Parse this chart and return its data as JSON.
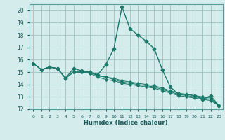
{
  "xlabel": "Humidex (Indice chaleur)",
  "ylabel": "",
  "bg_color": "#d4ecec",
  "grid_color": "#9fbfbf",
  "line_color": "#1a7a6a",
  "xlim": [
    -0.5,
    23.5
  ],
  "ylim": [
    12,
    20.5
  ],
  "yticks": [
    12,
    13,
    14,
    15,
    16,
    17,
    18,
    19,
    20
  ],
  "xticks": [
    0,
    1,
    2,
    3,
    4,
    5,
    6,
    7,
    8,
    9,
    10,
    11,
    12,
    13,
    14,
    15,
    16,
    17,
    18,
    19,
    20,
    21,
    22,
    23
  ],
  "series": [
    [
      15.7,
      15.2,
      15.4,
      15.3,
      14.5,
      15.3,
      15.1,
      15.0,
      14.8,
      15.6,
      16.9,
      20.3,
      18.5,
      18.0,
      17.5,
      16.9,
      15.2,
      13.8,
      13.2,
      13.2,
      13.1,
      12.8,
      13.1,
      12.3
    ],
    [
      15.7,
      15.2,
      15.4,
      15.3,
      14.5,
      15.0,
      15.0,
      15.0,
      14.7,
      14.6,
      14.5,
      14.3,
      14.2,
      14.1,
      14.0,
      13.9,
      13.7,
      13.5,
      13.3,
      13.2,
      13.1,
      13.0,
      12.9,
      12.3
    ],
    [
      15.7,
      15.2,
      15.4,
      15.3,
      14.5,
      15.0,
      15.0,
      15.0,
      14.7,
      14.6,
      14.4,
      14.2,
      14.1,
      14.0,
      13.9,
      13.8,
      13.6,
      13.4,
      13.2,
      13.1,
      13.0,
      12.9,
      12.8,
      12.3
    ],
    [
      15.7,
      15.2,
      15.4,
      15.3,
      14.5,
      15.0,
      15.0,
      14.9,
      14.6,
      14.4,
      14.3,
      14.1,
      14.0,
      13.9,
      13.8,
      13.7,
      13.5,
      13.3,
      13.1,
      13.0,
      12.9,
      12.8,
      12.7,
      12.3
    ]
  ]
}
